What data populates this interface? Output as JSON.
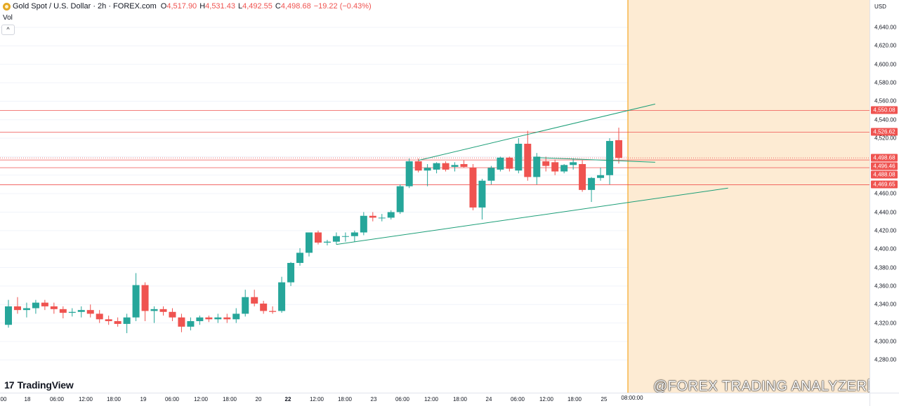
{
  "header": {
    "title": "Gold Spot / U.S. Dollar · 2h · FOREX.com",
    "ohlc": [
      {
        "k": "O",
        "v": "4,517.90"
      },
      {
        "k": "H",
        "v": "4,531.43"
      },
      {
        "k": "L",
        "v": "4,492.55"
      },
      {
        "k": "C",
        "v": "4,498.68"
      }
    ],
    "change": "−19.22 (−0.43%)",
    "volume_label": "Vol",
    "collapse_icon": "^"
  },
  "brand": {
    "mark": "17",
    "name": "TradingView"
  },
  "watermark": "@FOREX TRADING ANALYZER图",
  "colors": {
    "up": "#26a69a",
    "down": "#ef5350",
    "level_line": "#ef5350",
    "channel_line": "#1b9e77",
    "future_zone": "#fdebd3",
    "session_line": "#f5a623"
  },
  "chart_data": {
    "type": "candlestick",
    "symbol": "Gold Spot / U.S. Dollar",
    "interval": "2h",
    "currency": "USD",
    "ylim": [
      4260,
      4660
    ],
    "y_ticks": [
      "4,280.00",
      "4,300.00",
      "4,320.00",
      "4,340.00",
      "4,360.00",
      "4,380.00",
      "4,400.00",
      "4,420.00",
      "4,440.00",
      "4,460.00",
      "4,480.00",
      "4,500.00",
      "4,520.00",
      "4,540.00",
      "4,560.00",
      "4,580.00",
      "4,600.00",
      "4,620.00",
      "4,640.00"
    ],
    "x_ticks": [
      "00",
      "18",
      "06:00",
      "12:00",
      "18:00",
      "19",
      "06:00",
      "12:00",
      "18:00",
      "20",
      "22",
      "12:00",
      "18:00",
      "23",
      "06:00",
      "12:00",
      "18:00",
      "24",
      "06:00",
      "12:00",
      "18:00",
      "25"
    ],
    "x_tick_bold": "22",
    "cursor_time": "08:00:00",
    "price_labels": [
      {
        "value": 4550.08,
        "label": "4,550.08",
        "color": "#ef5350"
      },
      {
        "value": 4526.62,
        "label": "4,526.62",
        "color": "#ef5350"
      },
      {
        "value": 4498.68,
        "label": "4,498.68",
        "color": "#ef5350"
      },
      {
        "value": 4496.46,
        "label": "4,496.46",
        "color": "#ef5350"
      },
      {
        "value": 4488.08,
        "label": "4,488.08",
        "color": "#ef5350"
      },
      {
        "value": 4469.65,
        "label": "4,469.65",
        "color": "#ef5350"
      }
    ],
    "horizontal_levels": [
      4550.08,
      4526.62,
      4496.46,
      4488.08,
      4469.65
    ],
    "trendlines": [
      {
        "name": "channel-upper",
        "from": [
          45,
          4496
        ],
        "to": [
          71,
          4557
        ]
      },
      {
        "name": "channel-lower",
        "from": [
          36,
          4405
        ],
        "to": [
          79,
          4466
        ]
      },
      {
        "name": "inner-line",
        "from": [
          58,
          4499
        ],
        "to": [
          71,
          4494
        ]
      }
    ],
    "candles": [
      {
        "o": 4318,
        "h": 4345,
        "l": 4315,
        "c": 4338
      },
      {
        "o": 4338,
        "h": 4348,
        "l": 4330,
        "c": 4334
      },
      {
        "o": 4334,
        "h": 4342,
        "l": 4326,
        "c": 4336
      },
      {
        "o": 4336,
        "h": 4345,
        "l": 4330,
        "c": 4342
      },
      {
        "o": 4342,
        "h": 4345,
        "l": 4334,
        "c": 4338
      },
      {
        "o": 4338,
        "h": 4342,
        "l": 4330,
        "c": 4335
      },
      {
        "o": 4335,
        "h": 4338,
        "l": 4325,
        "c": 4331
      },
      {
        "o": 4331,
        "h": 4336,
        "l": 4327,
        "c": 4332
      },
      {
        "o": 4332,
        "h": 4338,
        "l": 4326,
        "c": 4334
      },
      {
        "o": 4334,
        "h": 4340,
        "l": 4326,
        "c": 4330
      },
      {
        "o": 4330,
        "h": 4334,
        "l": 4320,
        "c": 4324
      },
      {
        "o": 4324,
        "h": 4328,
        "l": 4318,
        "c": 4322
      },
      {
        "o": 4322,
        "h": 4326,
        "l": 4316,
        "c": 4319
      },
      {
        "o": 4319,
        "h": 4330,
        "l": 4309,
        "c": 4326
      },
      {
        "o": 4326,
        "h": 4374,
        "l": 4322,
        "c": 4361
      },
      {
        "o": 4361,
        "h": 4364,
        "l": 4322,
        "c": 4333
      },
      {
        "o": 4333,
        "h": 4338,
        "l": 4320,
        "c": 4335
      },
      {
        "o": 4335,
        "h": 4338,
        "l": 4328,
        "c": 4332
      },
      {
        "o": 4332,
        "h": 4336,
        "l": 4322,
        "c": 4326
      },
      {
        "o": 4326,
        "h": 4330,
        "l": 4310,
        "c": 4316
      },
      {
        "o": 4316,
        "h": 4326,
        "l": 4312,
        "c": 4322
      },
      {
        "o": 4322,
        "h": 4328,
        "l": 4318,
        "c": 4326
      },
      {
        "o": 4326,
        "h": 4328,
        "l": 4321,
        "c": 4324
      },
      {
        "o": 4324,
        "h": 4330,
        "l": 4320,
        "c": 4326
      },
      {
        "o": 4326,
        "h": 4330,
        "l": 4320,
        "c": 4324
      },
      {
        "o": 4324,
        "h": 4336,
        "l": 4320,
        "c": 4330
      },
      {
        "o": 4330,
        "h": 4356,
        "l": 4327,
        "c": 4348
      },
      {
        "o": 4348,
        "h": 4356,
        "l": 4338,
        "c": 4341
      },
      {
        "o": 4341,
        "h": 4344,
        "l": 4330,
        "c": 4333
      },
      {
        "o": 4333,
        "h": 4338,
        "l": 4330,
        "c": 4332
      },
      {
        "o": 4333,
        "h": 4370,
        "l": 4331,
        "c": 4364
      },
      {
        "o": 4364,
        "h": 4386,
        "l": 4360,
        "c": 4385
      },
      {
        "o": 4385,
        "h": 4401,
        "l": 4382,
        "c": 4396
      },
      {
        "o": 4396,
        "h": 4418,
        "l": 4392,
        "c": 4418
      },
      {
        "o": 4418,
        "h": 4420,
        "l": 4405,
        "c": 4407
      },
      {
        "o": 4407,
        "h": 4410,
        "l": 4404,
        "c": 4408
      },
      {
        "o": 4408,
        "h": 4418,
        "l": 4405,
        "c": 4414
      },
      {
        "o": 4414,
        "h": 4418,
        "l": 4408,
        "c": 4414
      },
      {
        "o": 4414,
        "h": 4420,
        "l": 4408,
        "c": 4418
      },
      {
        "o": 4418,
        "h": 4440,
        "l": 4415,
        "c": 4436
      },
      {
        "o": 4436,
        "h": 4440,
        "l": 4430,
        "c": 4434
      },
      {
        "o": 4434,
        "h": 4438,
        "l": 4430,
        "c": 4434
      },
      {
        "o": 4434,
        "h": 4442,
        "l": 4432,
        "c": 4440
      },
      {
        "o": 4440,
        "h": 4470,
        "l": 4438,
        "c": 4468
      },
      {
        "o": 4468,
        "h": 4498,
        "l": 4466,
        "c": 4495
      },
      {
        "o": 4495,
        "h": 4498,
        "l": 4483,
        "c": 4485
      },
      {
        "o": 4485,
        "h": 4492,
        "l": 4468,
        "c": 4488
      },
      {
        "o": 4486,
        "h": 4494,
        "l": 4482,
        "c": 4493
      },
      {
        "o": 4493,
        "h": 4495,
        "l": 4484,
        "c": 4486
      },
      {
        "o": 4489,
        "h": 4494,
        "l": 4484,
        "c": 4491
      },
      {
        "o": 4492,
        "h": 4496,
        "l": 4488,
        "c": 4489
      },
      {
        "o": 4488,
        "h": 4492,
        "l": 4442,
        "c": 4445
      },
      {
        "o": 4445,
        "h": 4476,
        "l": 4432,
        "c": 4474
      },
      {
        "o": 4474,
        "h": 4490,
        "l": 4470,
        "c": 4488
      },
      {
        "o": 4486,
        "h": 4500,
        "l": 4484,
        "c": 4499
      },
      {
        "o": 4499,
        "h": 4500,
        "l": 4484,
        "c": 4487
      },
      {
        "o": 4485,
        "h": 4520,
        "l": 4482,
        "c": 4514
      },
      {
        "o": 4514,
        "h": 4528,
        "l": 4474,
        "c": 4478
      },
      {
        "o": 4478,
        "h": 4504,
        "l": 4470,
        "c": 4500
      },
      {
        "o": 4495,
        "h": 4500,
        "l": 4484,
        "c": 4490
      },
      {
        "o": 4494,
        "h": 4497,
        "l": 4480,
        "c": 4484
      },
      {
        "o": 4484,
        "h": 4492,
        "l": 4482,
        "c": 4491
      },
      {
        "o": 4491,
        "h": 4498,
        "l": 4486,
        "c": 4494
      },
      {
        "o": 4492,
        "h": 4496,
        "l": 4462,
        "c": 4464
      },
      {
        "o": 4464,
        "h": 4478,
        "l": 4451,
        "c": 4477
      },
      {
        "o": 4477,
        "h": 4488,
        "l": 4474,
        "c": 4480
      },
      {
        "o": 4480,
        "h": 4520,
        "l": 4470,
        "c": 4517
      },
      {
        "o": 4517.9,
        "h": 4531.43,
        "l": 4492.55,
        "c": 4498.68
      }
    ]
  }
}
